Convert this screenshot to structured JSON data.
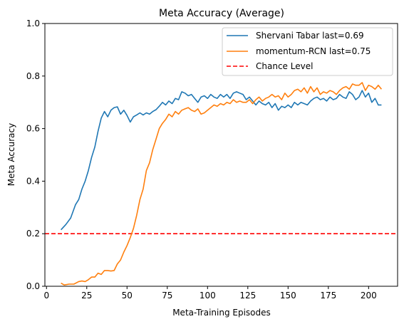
{
  "chart_data": {
    "type": "line",
    "title": "Meta Accuracy (Average)",
    "xlabel": "Meta-Training Episodes",
    "ylabel": "Meta Accuracy",
    "xlim": [
      -1,
      218
    ],
    "ylim": [
      0,
      1.0
    ],
    "xticks": [
      0,
      25,
      50,
      75,
      100,
      125,
      150,
      175,
      200
    ],
    "xtick_labels": [
      "0",
      "25",
      "50",
      "75",
      "100",
      "125",
      "150",
      "175",
      "200"
    ],
    "yticks": [
      0,
      0.2,
      0.4,
      0.6,
      0.8,
      1.0
    ],
    "ytick_labels": [
      "0.0",
      "0.2",
      "0.4",
      "0.6",
      "0.8",
      "1.0"
    ],
    "grid": false,
    "legend_position": "top-right",
    "series": [
      {
        "name": "Shervani Tabar last=0.69",
        "color": "#1f77b4",
        "style": "solid",
        "x": [
          9,
          12,
          15,
          18,
          20,
          22,
          24,
          26,
          28,
          30,
          32,
          34,
          36,
          38,
          40,
          42,
          44,
          46,
          48,
          50,
          52,
          54,
          56,
          58,
          60,
          62,
          64,
          66,
          68,
          70,
          72,
          74,
          76,
          78,
          80,
          82,
          84,
          86,
          88,
          90,
          92,
          94,
          96,
          98,
          100,
          102,
          104,
          106,
          108,
          110,
          112,
          114,
          116,
          118,
          120,
          122,
          124,
          126,
          128,
          130,
          132,
          134,
          136,
          138,
          140,
          142,
          144,
          146,
          148,
          150,
          152,
          154,
          156,
          158,
          160,
          162,
          164,
          166,
          168,
          170,
          172,
          174,
          176,
          178,
          180,
          182,
          184,
          186,
          188,
          190,
          192,
          194,
          196,
          198,
          200,
          202,
          204,
          206,
          208
        ],
        "y": [
          0.215,
          0.235,
          0.26,
          0.31,
          0.33,
          0.37,
          0.4,
          0.44,
          0.49,
          0.53,
          0.59,
          0.64,
          0.665,
          0.645,
          0.67,
          0.68,
          0.683,
          0.655,
          0.67,
          0.65,
          0.625,
          0.645,
          0.652,
          0.66,
          0.652,
          0.66,
          0.655,
          0.665,
          0.672,
          0.685,
          0.7,
          0.69,
          0.705,
          0.695,
          0.715,
          0.71,
          0.74,
          0.735,
          0.725,
          0.73,
          0.715,
          0.7,
          0.72,
          0.725,
          0.715,
          0.73,
          0.72,
          0.715,
          0.73,
          0.72,
          0.73,
          0.715,
          0.735,
          0.74,
          0.735,
          0.73,
          0.71,
          0.72,
          0.705,
          0.69,
          0.705,
          0.695,
          0.69,
          0.7,
          0.68,
          0.695,
          0.67,
          0.685,
          0.68,
          0.69,
          0.68,
          0.7,
          0.69,
          0.7,
          0.695,
          0.69,
          0.705,
          0.715,
          0.72,
          0.71,
          0.715,
          0.705,
          0.72,
          0.71,
          0.715,
          0.73,
          0.72,
          0.715,
          0.74,
          0.73,
          0.71,
          0.72,
          0.745,
          0.72,
          0.735,
          0.7,
          0.715,
          0.69,
          0.69
        ]
      },
      {
        "name": "momentum-RCN last=0.75",
        "color": "#ff7f0e",
        "style": "solid",
        "x": [
          9,
          11,
          14,
          17,
          20,
          22,
          24,
          26,
          28,
          30,
          32,
          34,
          36,
          38,
          40,
          42,
          44,
          46,
          48,
          50,
          52,
          54,
          56,
          58,
          60,
          62,
          64,
          66,
          68,
          70,
          72,
          74,
          76,
          78,
          80,
          82,
          84,
          86,
          88,
          90,
          92,
          94,
          96,
          98,
          100,
          102,
          104,
          106,
          108,
          110,
          112,
          114,
          116,
          118,
          120,
          122,
          124,
          126,
          128,
          130,
          132,
          134,
          136,
          138,
          140,
          142,
          144,
          146,
          148,
          150,
          152,
          154,
          156,
          158,
          160,
          162,
          164,
          166,
          168,
          170,
          172,
          174,
          176,
          178,
          180,
          182,
          184,
          186,
          188,
          190,
          192,
          194,
          196,
          198,
          200,
          202,
          204,
          206,
          208
        ],
        "y": [
          0.012,
          0.005,
          0.008,
          0.008,
          0.018,
          0.02,
          0.018,
          0.025,
          0.035,
          0.035,
          0.05,
          0.045,
          0.06,
          0.06,
          0.058,
          0.06,
          0.085,
          0.1,
          0.13,
          0.155,
          0.185,
          0.22,
          0.27,
          0.33,
          0.37,
          0.44,
          0.47,
          0.52,
          0.56,
          0.6,
          0.62,
          0.635,
          0.655,
          0.645,
          0.665,
          0.655,
          0.67,
          0.675,
          0.68,
          0.67,
          0.665,
          0.675,
          0.655,
          0.66,
          0.67,
          0.68,
          0.69,
          0.685,
          0.695,
          0.69,
          0.7,
          0.695,
          0.71,
          0.7,
          0.705,
          0.7,
          0.7,
          0.71,
          0.695,
          0.71,
          0.72,
          0.705,
          0.715,
          0.72,
          0.73,
          0.72,
          0.725,
          0.71,
          0.735,
          0.72,
          0.73,
          0.745,
          0.75,
          0.74,
          0.755,
          0.735,
          0.76,
          0.74,
          0.755,
          0.73,
          0.74,
          0.735,
          0.745,
          0.74,
          0.73,
          0.745,
          0.755,
          0.76,
          0.75,
          0.77,
          0.765,
          0.765,
          0.775,
          0.745,
          0.765,
          0.76,
          0.75,
          0.765,
          0.75
        ]
      }
    ],
    "reference_lines": [
      {
        "name": "Chance Level",
        "orientation": "horizontal",
        "y": 0.2,
        "color": "#ff0000",
        "style": "dashed"
      }
    ]
  }
}
